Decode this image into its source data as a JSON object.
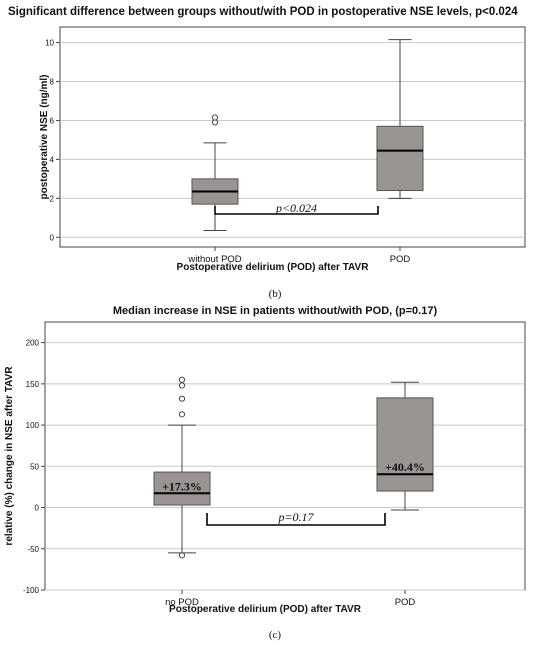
{
  "colors": {
    "box_fill": "#999391",
    "box_stroke": "#555555",
    "grid": "#c8c8c8",
    "axis": "#444444",
    "text": "#111111"
  },
  "chart_data": [
    {
      "type": "boxplot",
      "panel_label": "(b)",
      "title": "Significant difference between groups without/with POD in postoperative NSE levels, p<0.024",
      "xlabel": "Postoperative delirium (POD) after TAVR",
      "ylabel": "postoperative NSE (ng/ml)",
      "ylim": [
        -0.5,
        10.8
      ],
      "yticks": [
        0,
        2,
        4,
        6,
        8,
        10
      ],
      "grid": true,
      "categories": [
        "without POD",
        "POD"
      ],
      "boxes": [
        {
          "category": "without POD",
          "whisker_low": 0.35,
          "q1": 1.7,
          "median": 2.35,
          "q3": 3.0,
          "whisker_high": 4.85,
          "outliers": [
            5.9,
            6.15
          ]
        },
        {
          "category": "POD",
          "whisker_low": 2.0,
          "q1": 2.4,
          "median": 4.45,
          "q3": 5.7,
          "whisker_high": 10.15,
          "outliers": []
        }
      ],
      "annotation": {
        "text": "p<0.024"
      }
    },
    {
      "type": "boxplot",
      "panel_label": "(c)",
      "title": "Median increase in NSE in patients without/with POD, (p=0.17)",
      "xlabel": "Postoperative delirium (POD) after TAVR",
      "ylabel": "relative (%) change in NSE after TAVR",
      "ylim": [
        -100,
        225
      ],
      "yticks": [
        -100,
        -50,
        0,
        50,
        100,
        150,
        200
      ],
      "grid": true,
      "categories": [
        "no POD",
        "POD"
      ],
      "boxes": [
        {
          "category": "no POD",
          "whisker_low": -55,
          "q1": 3,
          "median": 17.3,
          "q3": 43,
          "whisker_high": 100,
          "outliers": [
            -58,
            113,
            132,
            148,
            155
          ],
          "label": "+17.3%"
        },
        {
          "category": "POD",
          "whisker_low": -3,
          "q1": 20,
          "median": 40.4,
          "q3": 133,
          "whisker_high": 152,
          "outliers": [],
          "label": "+40.4%"
        }
      ],
      "annotation": {
        "text": "p=0.17"
      }
    }
  ]
}
